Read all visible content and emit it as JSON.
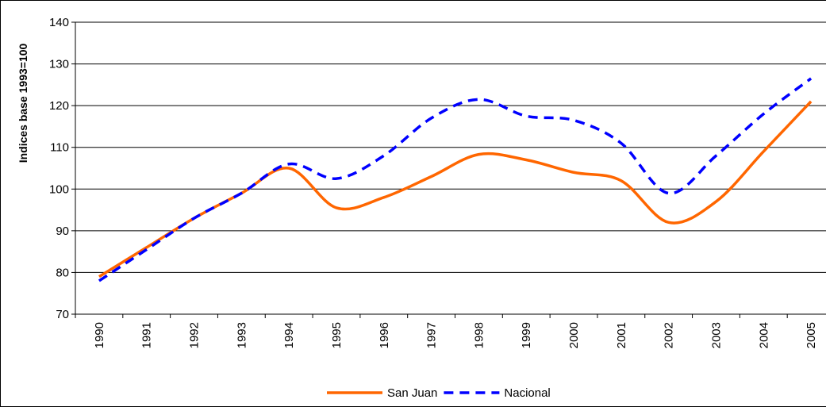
{
  "chart_data": {
    "type": "line",
    "y_label": "Indices base 1993=100",
    "categories": [
      "1990",
      "1991",
      "1992",
      "1993",
      "1994",
      "1995",
      "1996",
      "1997",
      "1998",
      "1999",
      "2000",
      "2001",
      "2002",
      "2003",
      "2004",
      "2005"
    ],
    "series": [
      {
        "name": "San Juan",
        "color": "#ff6600",
        "dash": false,
        "values": [
          79,
          86,
          93,
          99,
          105,
          95.5,
          98,
          103,
          108.3,
          107,
          104,
          102,
          92,
          97,
          109,
          121
        ]
      },
      {
        "name": "Nacional",
        "color": "#0000ff",
        "dash": true,
        "values": [
          78,
          85.5,
          93,
          99,
          106,
          102.5,
          108,
          117,
          121.5,
          117.5,
          116.5,
          111,
          99,
          108,
          118,
          126.5
        ]
      }
    ],
    "ylim": [
      70,
      140
    ],
    "yticks": [
      70,
      80,
      90,
      100,
      110,
      120,
      130,
      140
    ],
    "grid": true,
    "legend": "bottom"
  }
}
